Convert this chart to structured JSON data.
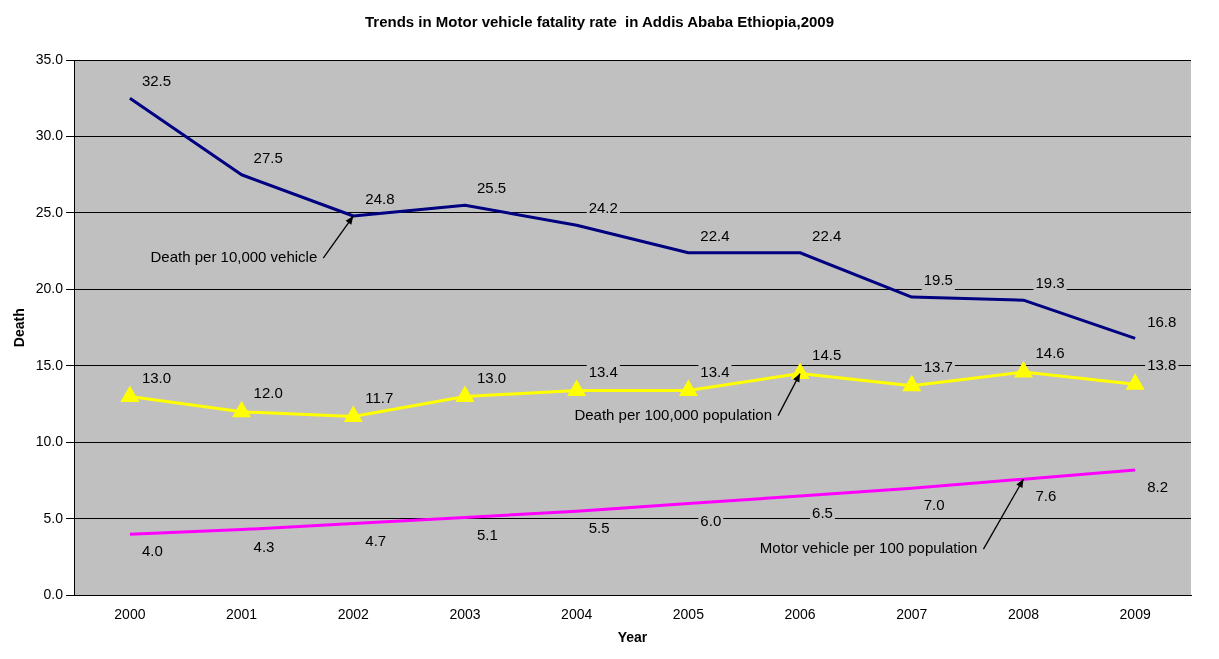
{
  "chart_data": {
    "type": "line",
    "title": "Trends in Motor vehicle fatality rate  in Addis Ababa Ethiopia,2009",
    "xlabel": "Year",
    "ylabel": "Death",
    "categories": [
      "2000",
      "2001",
      "2002",
      "2003",
      "2004",
      "2005",
      "2006",
      "2007",
      "2008",
      "2009"
    ],
    "series": [
      {
        "name": "Death per 10,000 vehicle",
        "color": "#000080",
        "marker": "none",
        "values": [
          32.5,
          27.5,
          24.8,
          25.5,
          24.2,
          22.4,
          22.4,
          19.5,
          19.3,
          16.8
        ],
        "value_labels": [
          "32.5",
          "27.5",
          "24.8",
          "25.5",
          "24.2",
          "22.4",
          "22.4",
          "19.5",
          "19.3",
          "16.8"
        ]
      },
      {
        "name": "Death per 100,000 population",
        "color": "#ffff00",
        "marker": "triangle",
        "values": [
          13.0,
          12.0,
          11.7,
          13.0,
          13.4,
          13.4,
          14.5,
          13.7,
          14.6,
          13.8
        ],
        "value_labels": [
          "13.0",
          "12.0",
          "11.7",
          "13.0",
          "13.4",
          "13.4",
          "14.5",
          "13.7",
          "14.6",
          "13.8"
        ]
      },
      {
        "name": "Motor vehicle per 100 population",
        "color": "#ff00ff",
        "marker": "none",
        "values": [
          4.0,
          4.3,
          4.7,
          5.1,
          5.5,
          6.0,
          6.5,
          7.0,
          7.6,
          8.2
        ],
        "value_labels": [
          "4.0",
          "4.3",
          "4.7",
          "5.1",
          "5.5",
          "6.0",
          "6.5",
          "7.0",
          "7.6",
          "8.2"
        ]
      }
    ],
    "ylim": [
      0,
      35
    ],
    "yticks": [
      {
        "value": 0,
        "label": "0.0"
      },
      {
        "value": 5,
        "label": "5.0"
      },
      {
        "value": 10,
        "label": "10.0"
      },
      {
        "value": 15,
        "label": "15.0"
      },
      {
        "value": 20,
        "label": "20.0"
      },
      {
        "value": 25,
        "label": "25.0"
      },
      {
        "value": 30,
        "label": "30.0"
      },
      {
        "value": 35,
        "label": "35.0"
      }
    ],
    "grid": "y",
    "legend": false
  }
}
